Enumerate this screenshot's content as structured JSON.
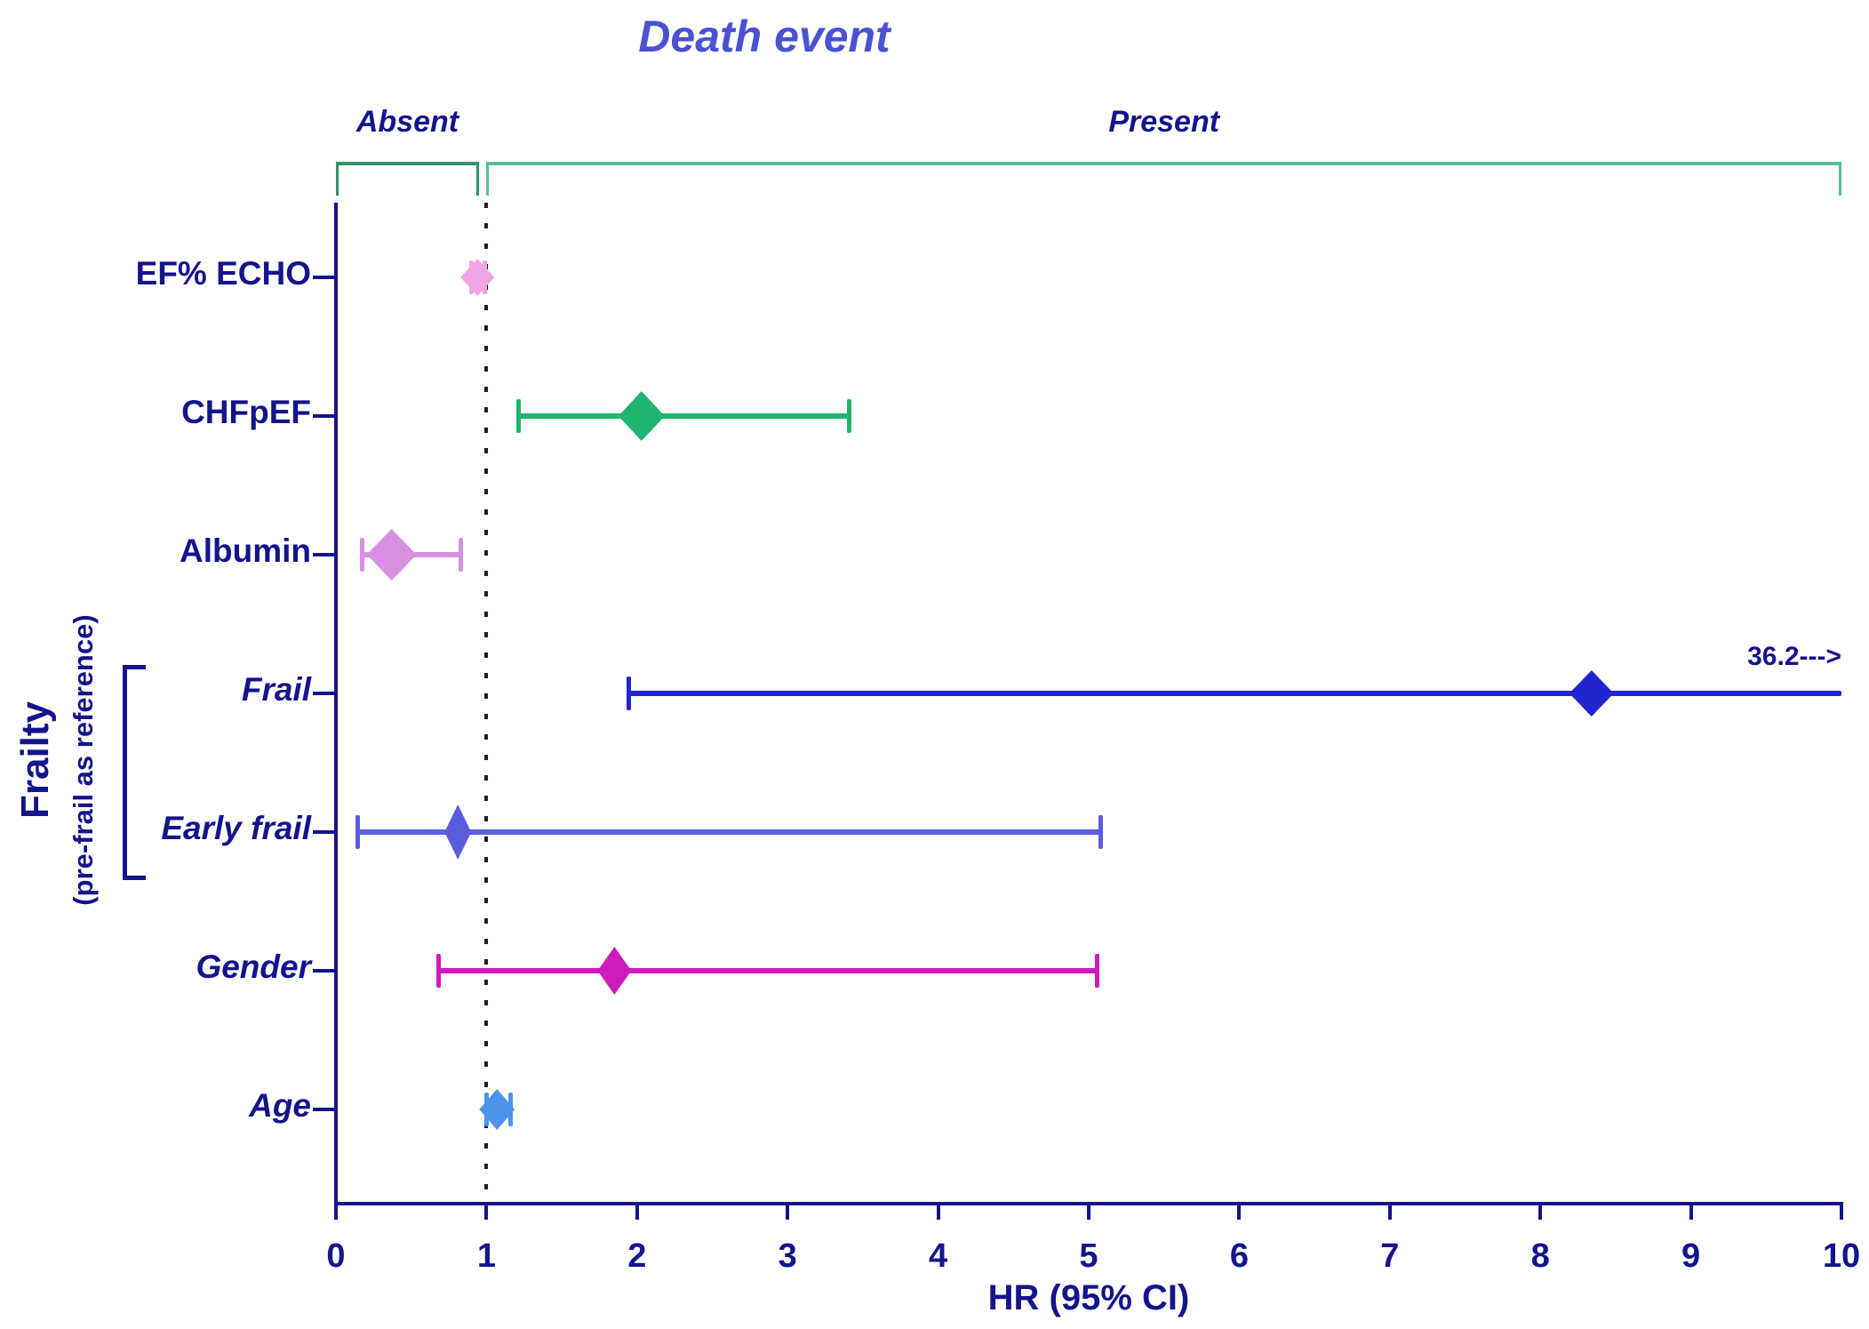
{
  "chart_data": {
    "type": "scatter",
    "variant": "forest-plot-hazard-ratios",
    "title": "Death event",
    "xlabel": "HR (95% CI)",
    "xlim": [
      0,
      10
    ],
    "x_ticks": [
      "0",
      "1",
      "2",
      "3",
      "4",
      "5",
      "6",
      "7",
      "8",
      "9",
      "10"
    ],
    "reference_line_x": 1,
    "grid": false,
    "top_brackets": [
      {
        "label": "Absent",
        "from": 0.0,
        "to": 0.95,
        "color": "#2f9164"
      },
      {
        "label": "Present",
        "from": 1.0,
        "to": 10.0,
        "color": "#5abf93"
      }
    ],
    "y_axis_group": {
      "title": "Frailty",
      "subtitle": "(pre-frail as reference)",
      "bracketed_rows": [
        "Frail",
        "Early frail"
      ]
    },
    "rows": [
      {
        "label": "EF% ECHO",
        "italic": false,
        "hr": 0.94,
        "ci_low": 0.9,
        "ci_high": 0.99,
        "color": "#efa5e3",
        "marker_w": 38,
        "marker_h": 42
      },
      {
        "label": "CHFpEF",
        "italic": false,
        "hr": 2.03,
        "ci_low": 1.21,
        "ci_high": 3.41,
        "color": "#1fb470",
        "marker_w": 52,
        "marker_h": 56
      },
      {
        "label": "Albumin",
        "italic": false,
        "hr": 0.37,
        "ci_low": 0.17,
        "ci_high": 0.83,
        "color": "#d78fe0",
        "marker_w": 56,
        "marker_h": 58
      },
      {
        "label": "Frail",
        "italic": true,
        "hr": 8.34,
        "ci_low": 1.94,
        "ci_high": 36.2,
        "ci_high_clipped_at": 10,
        "beyond_label": "36.2--->",
        "color": "#2323cf",
        "marker_w": 50,
        "marker_h": 52
      },
      {
        "label": "Early frail",
        "italic": true,
        "hr": 0.81,
        "ci_low": 0.14,
        "ci_high": 5.08,
        "color": "#5c5ce0",
        "marker_w": 30,
        "marker_h": 62
      },
      {
        "label": "Gender",
        "italic": true,
        "hr": 1.85,
        "ci_low": 0.68,
        "ci_high": 5.06,
        "color": "#ce1cbc",
        "marker_w": 38,
        "marker_h": 54
      },
      {
        "label": "Age",
        "italic": true,
        "hr": 1.07,
        "ci_low": 1.0,
        "ci_high": 1.16,
        "color": "#4f93e8",
        "marker_w": 40,
        "marker_h": 46
      }
    ],
    "colors": {
      "axis": "#14148c",
      "title": "#4a52d2",
      "labels": "#14148c",
      "reference_line": "#1a1a42"
    }
  }
}
